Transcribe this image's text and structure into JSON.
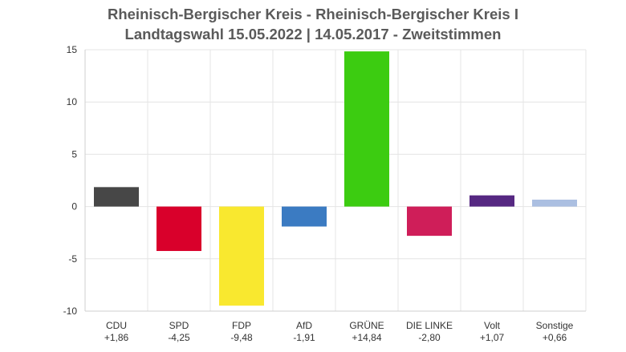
{
  "title_line1": "Rheinisch-Bergischer Kreis - Rheinisch-Bergischer Kreis I",
  "title_line2": "Landtagswahl 15.05.2022  | 14.05.2017 - Zweitstimmen",
  "chart_data": {
    "type": "bar",
    "title": "Rheinisch-Bergischer Kreis - Rheinisch-Bergischer Kreis I",
    "subtitle": "Landtagswahl 15.05.2022  | 14.05.2017 - Zweitstimmen",
    "categories": [
      "CDU",
      "SPD",
      "FDP",
      "AfD",
      "GRÜNE",
      "DIE LINKE",
      "Volt",
      "Sonstige"
    ],
    "values": [
      1.86,
      -4.25,
      -9.48,
      -1.91,
      14.84,
      -2.8,
      1.07,
      0.66
    ],
    "value_labels": [
      "+1,86",
      "-4,25",
      "-9,48",
      "-1,91",
      "+14,84",
      "-2,80",
      "+1,07",
      "+0,66"
    ],
    "colors": [
      "#474747",
      "#d9002b",
      "#f9e82f",
      "#3b7bc2",
      "#3ccc11",
      "#cf1e59",
      "#562882",
      "#abbfe1"
    ],
    "ylim": [
      -10,
      15
    ],
    "yticks": [
      15,
      10,
      5,
      0,
      -5,
      -10
    ],
    "grid": true,
    "xlabel": "",
    "ylabel": ""
  }
}
